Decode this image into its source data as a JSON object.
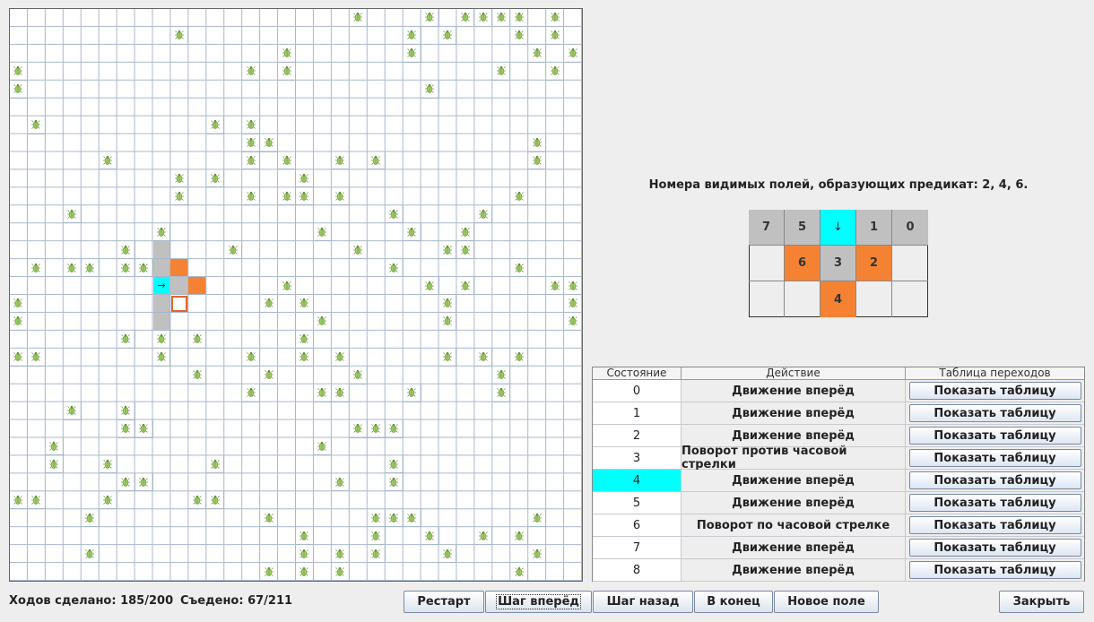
{
  "grid": {
    "size": 32,
    "bugs": [
      [
        0,
        19
      ],
      [
        0,
        23
      ],
      [
        0,
        25
      ],
      [
        0,
        26
      ],
      [
        0,
        27
      ],
      [
        0,
        28
      ],
      [
        0,
        30
      ],
      [
        1,
        9
      ],
      [
        1,
        22
      ],
      [
        1,
        24
      ],
      [
        1,
        28
      ],
      [
        1,
        30
      ],
      [
        2,
        15
      ],
      [
        2,
        22
      ],
      [
        2,
        29
      ],
      [
        2,
        31
      ],
      [
        3,
        0
      ],
      [
        3,
        13
      ],
      [
        3,
        15
      ],
      [
        3,
        27
      ],
      [
        3,
        30
      ],
      [
        4,
        0
      ],
      [
        4,
        23
      ],
      [
        6,
        1
      ],
      [
        6,
        11
      ],
      [
        6,
        13
      ],
      [
        7,
        13
      ],
      [
        7,
        14
      ],
      [
        7,
        29
      ],
      [
        8,
        5
      ],
      [
        8,
        13
      ],
      [
        8,
        15
      ],
      [
        8,
        18
      ],
      [
        8,
        20
      ],
      [
        8,
        29
      ],
      [
        9,
        9
      ],
      [
        9,
        11
      ],
      [
        9,
        16
      ],
      [
        10,
        9
      ],
      [
        10,
        13
      ],
      [
        10,
        15
      ],
      [
        10,
        16
      ],
      [
        10,
        18
      ],
      [
        10,
        28
      ],
      [
        11,
        3
      ],
      [
        11,
        21
      ],
      [
        11,
        26
      ],
      [
        12,
        8
      ],
      [
        12,
        17
      ],
      [
        12,
        22
      ],
      [
        12,
        25
      ],
      [
        13,
        6
      ],
      [
        13,
        12
      ],
      [
        13,
        19
      ],
      [
        13,
        24
      ],
      [
        13,
        25
      ],
      [
        14,
        1
      ],
      [
        14,
        3
      ],
      [
        14,
        4
      ],
      [
        14,
        6
      ],
      [
        14,
        7
      ],
      [
        14,
        21
      ],
      [
        14,
        28
      ],
      [
        15,
        15
      ],
      [
        15,
        23
      ],
      [
        15,
        25
      ],
      [
        15,
        30
      ],
      [
        15,
        31
      ],
      [
        16,
        0
      ],
      [
        16,
        14
      ],
      [
        16,
        16
      ],
      [
        16,
        24
      ],
      [
        16,
        31
      ],
      [
        17,
        0
      ],
      [
        17,
        17
      ],
      [
        17,
        24
      ],
      [
        17,
        31
      ],
      [
        18,
        6
      ],
      [
        18,
        8
      ],
      [
        18,
        10
      ],
      [
        18,
        16
      ],
      [
        19,
        0
      ],
      [
        19,
        1
      ],
      [
        19,
        8
      ],
      [
        19,
        13
      ],
      [
        19,
        16
      ],
      [
        19,
        18
      ],
      [
        19,
        24
      ],
      [
        19,
        26
      ],
      [
        19,
        28
      ],
      [
        20,
        10
      ],
      [
        20,
        14
      ],
      [
        20,
        19
      ],
      [
        20,
        27
      ],
      [
        21,
        13
      ],
      [
        21,
        17
      ],
      [
        21,
        18
      ],
      [
        21,
        22
      ],
      [
        21,
        27
      ],
      [
        22,
        3
      ],
      [
        22,
        6
      ],
      [
        23,
        6
      ],
      [
        23,
        7
      ],
      [
        23,
        19
      ],
      [
        23,
        20
      ],
      [
        23,
        21
      ],
      [
        24,
        2
      ],
      [
        24,
        17
      ],
      [
        25,
        2
      ],
      [
        25,
        5
      ],
      [
        25,
        11
      ],
      [
        25,
        21
      ],
      [
        26,
        6
      ],
      [
        26,
        7
      ],
      [
        26,
        18
      ],
      [
        26,
        21
      ],
      [
        27,
        0
      ],
      [
        27,
        1
      ],
      [
        27,
        5
      ],
      [
        27,
        10
      ],
      [
        27,
        11
      ],
      [
        28,
        4
      ],
      [
        28,
        14
      ],
      [
        28,
        20
      ],
      [
        28,
        21
      ],
      [
        28,
        22
      ],
      [
        28,
        29
      ],
      [
        29,
        16
      ],
      [
        29,
        20
      ],
      [
        29,
        23
      ],
      [
        29,
        26
      ],
      [
        29,
        28
      ],
      [
        30,
        4
      ],
      [
        30,
        16
      ],
      [
        30,
        18
      ],
      [
        30,
        20
      ],
      [
        30,
        24
      ],
      [
        30,
        29
      ],
      [
        31,
        14
      ],
      [
        31,
        16
      ],
      [
        31,
        18
      ],
      [
        31,
        28
      ]
    ],
    "highlight": [
      {
        "row": 13,
        "col": 8,
        "type": "gray"
      },
      {
        "row": 14,
        "col": 8,
        "type": "gray"
      },
      {
        "row": 14,
        "col": 9,
        "type": "orange"
      },
      {
        "row": 15,
        "col": 8,
        "type": "cyan",
        "text": "→"
      },
      {
        "row": 15,
        "col": 9,
        "type": "gray"
      },
      {
        "row": 15,
        "col": 10,
        "type": "orange"
      },
      {
        "row": 16,
        "col": 8,
        "type": "gray"
      },
      {
        "row": 16,
        "col": 9,
        "type": "agent"
      },
      {
        "row": 17,
        "col": 8,
        "type": "gray"
      }
    ]
  },
  "predicate_text": "Номера видимых полей, образующих предикат: 2, 4, 6.",
  "view_grid": [
    [
      {
        "label": "7",
        "type": "gray"
      },
      {
        "label": "5",
        "type": "gray"
      },
      {
        "label": "↓",
        "type": "cyan"
      },
      {
        "label": "1",
        "type": "gray"
      },
      {
        "label": "0",
        "type": "gray"
      }
    ],
    [
      {
        "label": "",
        "type": "empty"
      },
      {
        "label": "6",
        "type": "orange"
      },
      {
        "label": "3",
        "type": "gray"
      },
      {
        "label": "2",
        "type": "orange"
      },
      {
        "label": "",
        "type": "empty"
      }
    ],
    [
      {
        "label": "",
        "type": "empty"
      },
      {
        "label": "",
        "type": "empty"
      },
      {
        "label": "4",
        "type": "orange"
      },
      {
        "label": "",
        "type": "empty"
      },
      {
        "label": "",
        "type": "empty"
      }
    ]
  ],
  "table": {
    "headers": [
      "Состояние",
      "Действие",
      "Таблица переходов"
    ],
    "rows": [
      {
        "state": "0",
        "action": "Движение вперёд",
        "button": "Показать таблицу"
      },
      {
        "state": "1",
        "action": "Движение вперёд",
        "button": "Показать таблицу"
      },
      {
        "state": "2",
        "action": "Движение вперёд",
        "button": "Показать таблицу"
      },
      {
        "state": "3",
        "action": "Поворот против часовой стрелки",
        "button": "Показать таблицу"
      },
      {
        "state": "4",
        "action": "Движение вперёд",
        "button": "Показать таблицу",
        "active": true
      },
      {
        "state": "5",
        "action": "Движение вперёд",
        "button": "Показать таблицу"
      },
      {
        "state": "6",
        "action": "Поворот по часовой стрелке",
        "button": "Показать таблицу"
      },
      {
        "state": "7",
        "action": "Движение вперёд",
        "button": "Показать таблицу"
      },
      {
        "state": "8",
        "action": "Движение вперёд",
        "button": "Показать таблицу"
      }
    ]
  },
  "status": {
    "moves": "Ходов сделано: 185/200",
    "eaten": "Съедено: 67/211"
  },
  "buttons": {
    "restart": "Рестарт",
    "step_forward": "Шаг вперёд",
    "step_back": "Шаг назад",
    "to_end": "В конец",
    "new_field": "Новое поле",
    "close": "Закрыть"
  },
  "colors": {
    "gray": "#c0c0c0",
    "orange": "#f58233",
    "cyan": "#00ffff",
    "bug": "#6aa84f"
  }
}
